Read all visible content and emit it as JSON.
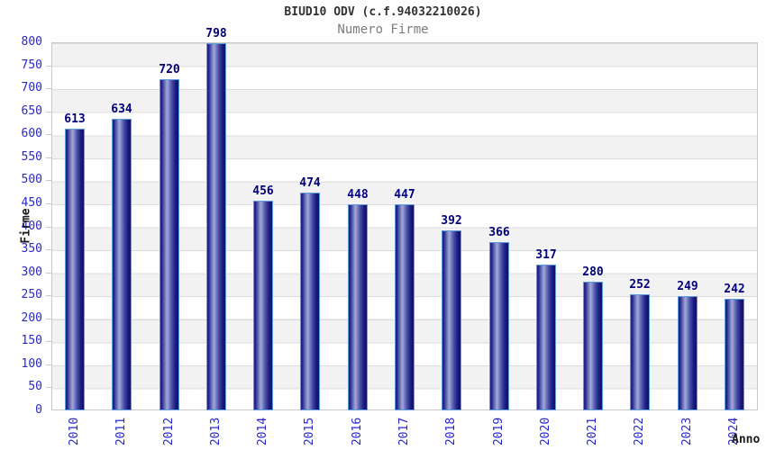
{
  "header": {
    "title": "BIUD10 ODV (c.f.94032210026)",
    "subtitle": "Numero Firme"
  },
  "chart_data": {
    "type": "bar",
    "title": "BIUD10 ODV (c.f.94032210026)",
    "subtitle": "Numero Firme",
    "xlabel": "Anno",
    "ylabel": "Firme",
    "categories": [
      "2010",
      "2011",
      "2012",
      "2013",
      "2014",
      "2015",
      "2016",
      "2017",
      "2018",
      "2019",
      "2020",
      "2021",
      "2022",
      "2023",
      "2024"
    ],
    "values": [
      613,
      634,
      720,
      798,
      456,
      474,
      448,
      447,
      392,
      366,
      317,
      280,
      252,
      249,
      242
    ],
    "ylim": [
      0,
      800
    ],
    "ytick_step": 50,
    "yticks": [
      0,
      50,
      100,
      150,
      200,
      250,
      300,
      350,
      400,
      450,
      500,
      550,
      600,
      650,
      700,
      750,
      800
    ],
    "grid": "horizontal gridlines every 50 with alternating gray/white bands",
    "legend": "none",
    "colors": {
      "bar_dark": "#1f1f88",
      "bar_light": "#a3aad9",
      "bar_border": "#5b9be0",
      "tick_label": "#2727cf",
      "value_label": "#00007d",
      "band_gray": "#f2f2f2",
      "gridline": "#dcdcdc",
      "title": "#333333",
      "subtitle": "#7d7d7d"
    }
  }
}
